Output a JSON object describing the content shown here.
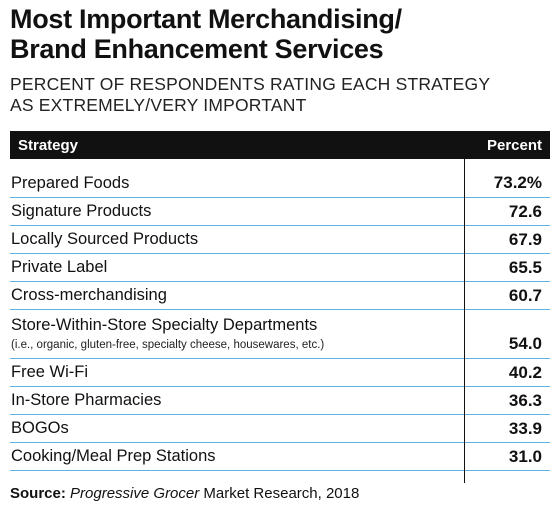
{
  "title": {
    "line1": "Most Important Merchandising/",
    "line2": "Brand Enhancement Services"
  },
  "subtitle": {
    "line1": "PERCENT OF RESPONDENTS RATING EACH STRATEGY",
    "line2": "AS EXTREMELY/VERY IMPORTANT"
  },
  "table": {
    "headers": {
      "strategy": "Strategy",
      "percent": "Percent"
    },
    "rows": [
      {
        "label": "Prepared Foods",
        "note": "",
        "value": "73.2%"
      },
      {
        "label": "Signature Products",
        "note": "",
        "value": "72.6"
      },
      {
        "label": "Locally Sourced Products",
        "note": "",
        "value": "67.9"
      },
      {
        "label": "Private Label",
        "note": "",
        "value": "65.5"
      },
      {
        "label": "Cross-merchandising",
        "note": "",
        "value": "60.7"
      },
      {
        "label": "Store-Within-Store Specialty Departments",
        "note": "(i.e., organic, gluten-free, specialty cheese, housewares, etc.)",
        "value": "54.0"
      },
      {
        "label": "Free Wi-Fi",
        "note": "",
        "value": "40.2"
      },
      {
        "label": "In-Store Pharmacies",
        "note": "",
        "value": "36.3"
      },
      {
        "label": "BOGOs",
        "note": "",
        "value": "33.9"
      },
      {
        "label": "Cooking/Meal Prep Stations",
        "note": "",
        "value": "31.0"
      }
    ]
  },
  "source": {
    "label": "Source:",
    "publication": "Progressive Grocer",
    "rest": " Market Research, 2018"
  },
  "colors": {
    "header_bg": "#111111",
    "row_rule": "#5fb2df",
    "text": "#111111"
  }
}
